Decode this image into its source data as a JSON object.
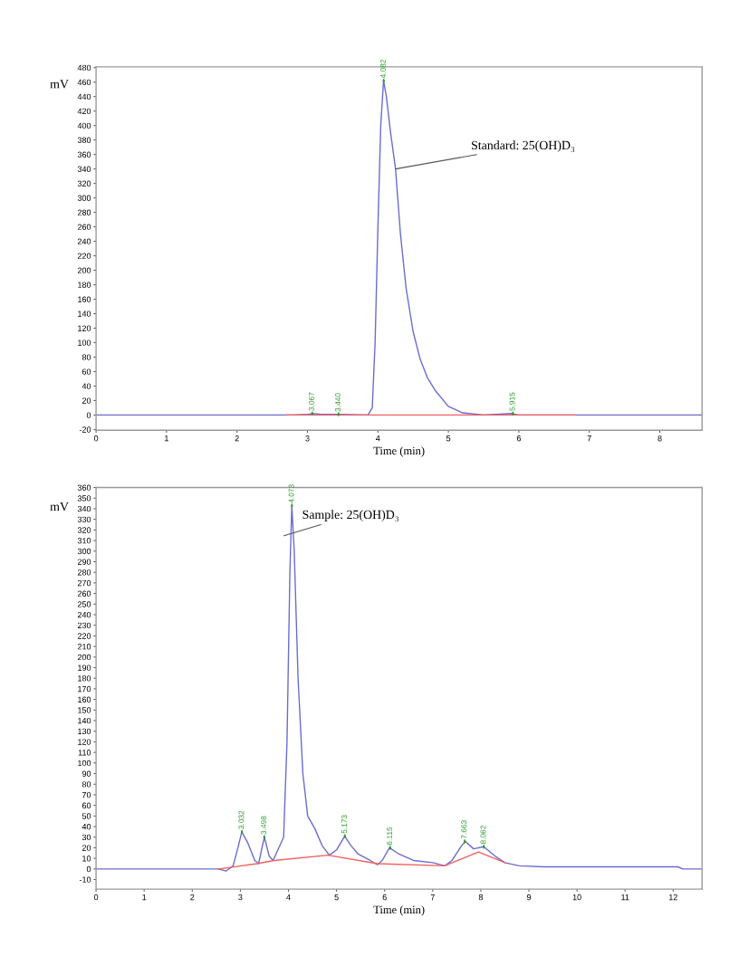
{
  "chart_data": [
    {
      "type": "line",
      "xlabel": "Time (min)",
      "ylabel": "mV",
      "xlim": [
        0,
        8.6
      ],
      "ylim": [
        -21,
        481
      ],
      "xticks": [
        0,
        1,
        2,
        3,
        4,
        5,
        6,
        7,
        8
      ],
      "yticks": [
        -20,
        0,
        20,
        40,
        60,
        80,
        100,
        120,
        140,
        160,
        180,
        200,
        220,
        240,
        260,
        280,
        300,
        320,
        340,
        360,
        380,
        400,
        420,
        440,
        460,
        480
      ],
      "grid": false,
      "legend": false,
      "marker": "none",
      "line_style": "solid",
      "series": [
        {
          "color": "#6b6bd0",
          "x": [
            0,
            2.8,
            3.0,
            3.07,
            3.2,
            3.44,
            3.86,
            3.92,
            3.96,
            4.0,
            4.04,
            4.08,
            4.12,
            4.18,
            4.25,
            4.32,
            4.4,
            4.5,
            4.6,
            4.7,
            4.82,
            5.0,
            5.2,
            5.5,
            5.9,
            6.0,
            8.6
          ],
          "values": [
            0,
            0,
            1,
            2,
            1,
            1,
            0,
            10,
            100,
            260,
            400,
            462,
            440,
            390,
            340,
            250,
            175,
            115,
            77,
            52,
            33,
            12,
            3,
            0,
            2,
            0,
            0
          ]
        },
        {
          "color": "#f06060",
          "x": [
            2.7,
            6.8
          ],
          "values": [
            0,
            0
          ]
        }
      ],
      "annotations": [
        {
          "text": "Standard: 25(OH)D₃",
          "x": 4.25,
          "y": 340
        },
        {
          "text": "3.067",
          "x": 3.067,
          "y": 2
        },
        {
          "text": "3.440",
          "x": 3.44,
          "y": 1
        },
        {
          "text": "4.082",
          "x": 4.082,
          "y": 462
        },
        {
          "text": "5.915",
          "x": 5.915,
          "y": 2
        }
      ]
    },
    {
      "type": "line",
      "xlabel": "Time (min)",
      "ylabel": "mV",
      "xlim": [
        0,
        12.6
      ],
      "ylim": [
        -19,
        360
      ],
      "xticks": [
        0,
        1,
        2,
        3,
        4,
        5,
        6,
        7,
        8,
        9,
        10,
        11,
        12
      ],
      "yticks": [
        -10,
        0,
        10,
        20,
        30,
        40,
        50,
        60,
        70,
        80,
        90,
        100,
        110,
        120,
        130,
        140,
        150,
        160,
        170,
        180,
        190,
        200,
        210,
        220,
        230,
        240,
        250,
        260,
        270,
        280,
        290,
        300,
        310,
        320,
        330,
        340,
        350,
        360
      ],
      "grid": false,
      "legend": false,
      "marker": "none",
      "line_style": "solid",
      "series": [
        {
          "color": "#6b6bd0",
          "x": [
            0,
            2.55,
            2.7,
            2.85,
            2.95,
            3.03,
            3.15,
            3.3,
            3.38,
            3.45,
            3.5,
            3.6,
            3.68,
            3.8,
            3.9,
            3.97,
            4.03,
            4.07,
            4.12,
            4.2,
            4.3,
            4.4,
            4.55,
            4.7,
            4.85,
            5.0,
            5.17,
            5.3,
            5.45,
            5.7,
            5.85,
            5.95,
            6.1,
            6.3,
            6.6,
            7.0,
            7.25,
            7.4,
            7.6,
            7.68,
            7.85,
            8.06,
            8.3,
            8.5,
            8.8,
            9.3,
            10,
            12.1,
            12.2,
            12.6
          ],
          "values": [
            0,
            0,
            -2,
            3,
            20,
            35,
            25,
            8,
            5,
            20,
            30,
            12,
            8,
            20,
            30,
            120,
            280,
            343,
            300,
            180,
            90,
            50,
            38,
            22,
            13,
            18,
            31,
            22,
            14,
            8,
            4,
            8,
            20,
            14,
            8,
            6,
            3,
            8,
            22,
            26,
            19,
            21,
            12,
            6,
            3,
            2,
            2,
            2,
            0,
            0
          ]
        },
        {
          "color": "#f06060",
          "x": [
            2.55,
            3.35,
            3.7,
            4.82,
            5.85,
            7.25,
            7.95,
            8.5
          ],
          "values": [
            0,
            5,
            8,
            13,
            5,
            3,
            16,
            6
          ]
        }
      ],
      "annotations": [
        "Sample: 25(OH)D₃",
        {
          "text": "3.032",
          "x": 3.032,
          "y": 35
        },
        {
          "text": "3.498",
          "x": 3.498,
          "y": 30
        },
        {
          "text": "4.073",
          "x": 4.073,
          "y": 343
        },
        {
          "text": "5.173",
          "x": 5.173,
          "y": 31
        },
        {
          "text": "6.115",
          "x": 6.115,
          "y": 20
        },
        {
          "text": "7.663",
          "x": 7.663,
          "y": 26
        },
        {
          "text": "8.062",
          "x": 8.062,
          "y": 21
        }
      ]
    }
  ]
}
